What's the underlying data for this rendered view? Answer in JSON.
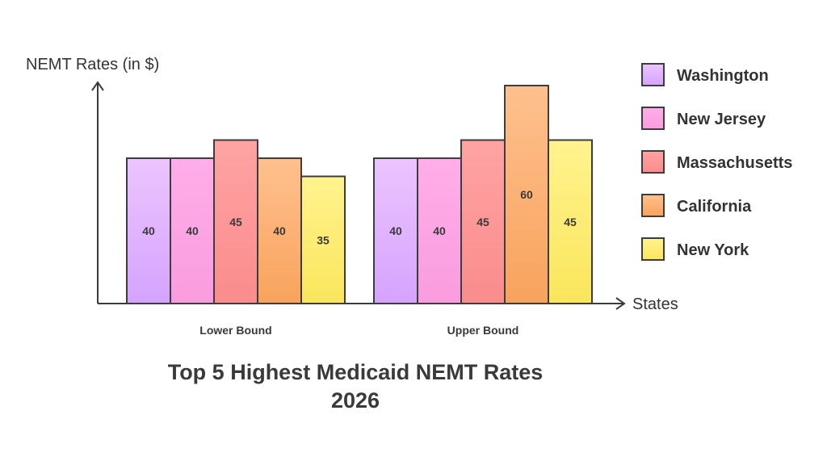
{
  "chart_data": {
    "type": "bar",
    "title": "Top 5 Highest Medicaid NEMT Rates 2026",
    "ylabel": "NEMT Rates (in $)",
    "xlabel": "States",
    "ylim": [
      0,
      70
    ],
    "grid": false,
    "legend_position": "right",
    "categories": [
      "Lower Bound",
      "Upper Bound"
    ],
    "series": [
      {
        "name": "Washington",
        "values": [
          40,
          40
        ],
        "color_top": "#ecc4ff",
        "color_bottom": "#d5a3ff"
      },
      {
        "name": "New Jersey",
        "values": [
          40,
          40
        ],
        "color_top": "#ffaee9",
        "color_bottom": "#f99cde"
      },
      {
        "name": "Massachusetts",
        "values": [
          45,
          45
        ],
        "color_top": "#ffa3a3",
        "color_bottom": "#fa8c8c"
      },
      {
        "name": "California",
        "values": [
          40,
          60
        ],
        "color_top": "#ffc08e",
        "color_bottom": "#f8a35c"
      },
      {
        "name": "New York",
        "values": [
          35,
          45
        ],
        "color_top": "#fff38e",
        "color_bottom": "#fae65c"
      }
    ]
  }
}
